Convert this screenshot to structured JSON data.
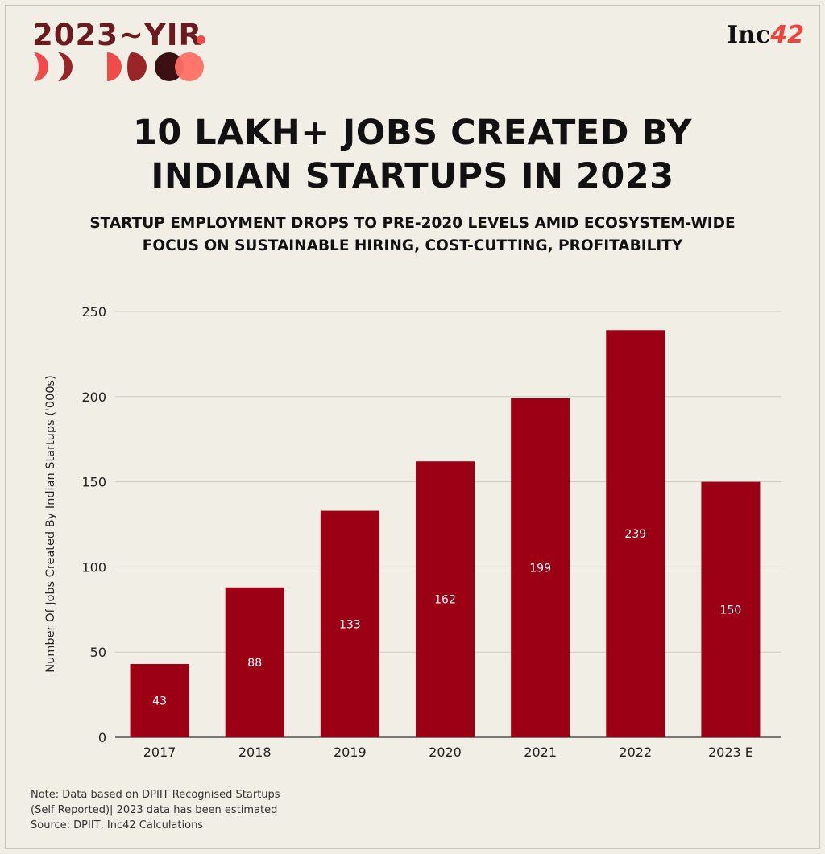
{
  "brand": {
    "series_label": "2023~YIR",
    "publisher": "Inc",
    "publisher_suffix": "42"
  },
  "colors": {
    "bar": "#9b0014",
    "background": "#f1eee5",
    "brand_red": "#f2423c",
    "brand_maroon": "#6b1a1f"
  },
  "header": {
    "title_line1": "10 LAKH+ JOBS CREATED BY",
    "title_line2": "INDIAN STARTUPS IN 2023",
    "subtitle_line1": "STARTUP EMPLOYMENT DROPS TO PRE-2020 LEVELS AMID ECOSYSTEM-WIDE",
    "subtitle_line2": "FOCUS ON SUSTAINABLE HIRING, COST-CUTTING, PROFITABILITY"
  },
  "chart_data": {
    "type": "bar",
    "categories": [
      "2017",
      "2018",
      "2019",
      "2020",
      "2021",
      "2022",
      "2023 E"
    ],
    "values": [
      43,
      88,
      133,
      162,
      199,
      239,
      150
    ],
    "data_labels": [
      "43",
      "88",
      "133",
      "162",
      "199",
      "239",
      "150"
    ],
    "ylabel": "Number Of Jobs Created By Indian Startups ('000s)",
    "xlabel": "",
    "ylim": [
      0,
      250
    ],
    "yticks": [
      0,
      50,
      100,
      150,
      200,
      250
    ],
    "ytick_labels": [
      "0",
      "50",
      "100",
      "150",
      "200",
      "250"
    ],
    "grid": true
  },
  "footer": {
    "note_line1": "Note: Data based on DPIIT Recognised Startups",
    "note_line2": "(Self Reported)| 2023 data has been estimated",
    "source": "Source: DPIIT, Inc42 Calculations"
  }
}
